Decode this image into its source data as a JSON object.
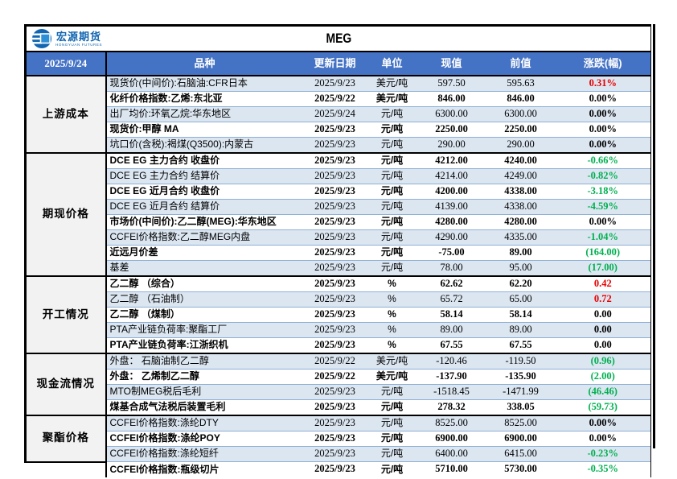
{
  "page": {
    "report_date": "2025/9/24",
    "product": "MEG"
  },
  "logo": {
    "cn": "宏源期货",
    "en": "HONGYUAN FUTURES"
  },
  "colors": {
    "header_bg": "#4472C4",
    "stripe_blue": "#DCE6F1",
    "group_bg": "#F2F2F2",
    "up_red": "#E80000",
    "down_green": "#00B050"
  },
  "table": {
    "columns": [
      "品种",
      "更新日期",
      "单位",
      "现值",
      "前值",
      "涨跌(幅)"
    ],
    "groups": [
      {
        "label": "上游成本",
        "rows": [
          {
            "name": "现货价(中间价):石脑油:CFR日本",
            "date": "2025/9/23",
            "unit": "美元/吨",
            "current": "597.50",
            "previous": "595.63",
            "change": "0.31%",
            "dir": "up"
          },
          {
            "name": "化纤价格指数:乙烯:东北亚",
            "date": "2025/9/22",
            "unit": "美元/吨",
            "current": "846.00",
            "previous": "846.00",
            "change": "0.00%",
            "dir": "flat"
          },
          {
            "name": "出厂均价:环氧乙烷:华东地区",
            "date": "2025/9/24",
            "unit": "元/吨",
            "current": "6300.00",
            "previous": "6300.00",
            "change": "0.00%",
            "dir": "flat"
          },
          {
            "name": "现货价:甲醇 MA",
            "date": "2025/9/23",
            "unit": "元/吨",
            "current": "2250.00",
            "previous": "2250.00",
            "change": "0.00%",
            "dir": "flat"
          },
          {
            "name": "坑口价(含税):褐煤(Q3500):内蒙古",
            "date": "2025/9/23",
            "unit": "元/吨",
            "current": "290.00",
            "previous": "290.00",
            "change": "0.00%",
            "dir": "flat"
          }
        ]
      },
      {
        "label": "期现价格",
        "rows": [
          {
            "name": "DCE EG 主力合约 收盘价",
            "date": "2025/9/23",
            "unit": "元/吨",
            "current": "4212.00",
            "previous": "4240.00",
            "change": "-0.66%",
            "dir": "down"
          },
          {
            "name": "DCE EG 主力合约 结算价",
            "date": "2025/9/23",
            "unit": "元/吨",
            "current": "4214.00",
            "previous": "4249.00",
            "change": "-0.82%",
            "dir": "down"
          },
          {
            "name": "DCE EG 近月合约 收盘价",
            "date": "2025/9/23",
            "unit": "元/吨",
            "current": "4200.00",
            "previous": "4338.00",
            "change": "-3.18%",
            "dir": "down"
          },
          {
            "name": "DCE EG 近月合约 结算价",
            "date": "2025/9/23",
            "unit": "元/吨",
            "current": "4139.00",
            "previous": "4338.00",
            "change": "-4.59%",
            "dir": "down"
          },
          {
            "name": "市场价(中间价):乙二醇(MEG):华东地区",
            "date": "2025/9/23",
            "unit": "元/吨",
            "current": "4280.00",
            "previous": "4280.00",
            "change": "0.00%",
            "dir": "flat"
          },
          {
            "name": "CCFEI价格指数:乙二醇MEG内盘",
            "date": "2025/9/23",
            "unit": "元/吨",
            "current": "4290.00",
            "previous": "4335.00",
            "change": "-1.04%",
            "dir": "down"
          },
          {
            "name": "近远月价差",
            "date": "2025/9/23",
            "unit": "元/吨",
            "current": "-75.00",
            "previous": "89.00",
            "change": "(164.00)",
            "dir": "down"
          },
          {
            "name": "基差",
            "date": "2025/9/23",
            "unit": "元/吨",
            "current": "78.00",
            "previous": "95.00",
            "change": "(17.00)",
            "dir": "down"
          }
        ]
      },
      {
        "label": "开工情况",
        "rows": [
          {
            "name": "乙二醇 （综合）",
            "date": "2025/9/23",
            "unit": "%",
            "current": "62.62",
            "previous": "62.20",
            "change": "0.42",
            "dir": "up"
          },
          {
            "name": "乙二醇 （石油制）",
            "date": "2025/9/23",
            "unit": "%",
            "current": "65.72",
            "previous": "65.00",
            "change": "0.72",
            "dir": "up"
          },
          {
            "name": "乙二醇 （煤制）",
            "date": "2025/9/23",
            "unit": "%",
            "current": "58.14",
            "previous": "58.14",
            "change": "0.00",
            "dir": "flat"
          },
          {
            "name": "PTA产业链负荷率:聚酯工厂",
            "date": "2025/9/23",
            "unit": "%",
            "current": "89.00",
            "previous": "89.00",
            "change": "0.00",
            "dir": "flat"
          },
          {
            "name": "PTA产业链负荷率:江浙织机",
            "date": "2025/9/23",
            "unit": "%",
            "current": "67.55",
            "previous": "67.55",
            "change": "0.00",
            "dir": "flat"
          }
        ]
      },
      {
        "label": "现金流情况",
        "rows": [
          {
            "name": "外盘： 石脑油制乙二醇",
            "date": "2025/9/22",
            "unit": "美元/吨",
            "current": "-120.46",
            "previous": "-119.50",
            "change": "(0.96)",
            "dir": "down"
          },
          {
            "name": "外盘： 乙烯制乙二醇",
            "date": "2025/9/22",
            "unit": "美元/吨",
            "current": "-137.90",
            "previous": "-135.90",
            "change": "(2.00)",
            "dir": "down"
          },
          {
            "name": "MTO制MEG税后毛利",
            "date": "2025/9/23",
            "unit": "元/吨",
            "current": "-1518.45",
            "previous": "-1471.99",
            "change": "(46.46)",
            "dir": "down"
          },
          {
            "name": "煤基合成气法税后装置毛利",
            "date": "2025/9/23",
            "unit": "元/吨",
            "current": "278.32",
            "previous": "338.05",
            "change": "(59.73)",
            "dir": "down"
          }
        ]
      },
      {
        "label": "聚酯价格",
        "label_rowspan": 3,
        "rows": [
          {
            "name": "CCFEI价格指数:涤纶DTY",
            "date": "2025/9/23",
            "unit": "元/吨",
            "current": "8525.00",
            "previous": "8525.00",
            "change": "0.00%",
            "dir": "flat"
          },
          {
            "name": "CCFEI价格指数:涤纶POY",
            "date": "2025/9/23",
            "unit": "元/吨",
            "current": "6900.00",
            "previous": "6900.00",
            "change": "0.00%",
            "dir": "flat"
          },
          {
            "name": "CCFEI价格指数:涤纶短纤",
            "date": "2025/9/23",
            "unit": "元/吨",
            "current": "6400.00",
            "previous": "6415.00",
            "change": "-0.23%",
            "dir": "down"
          },
          {
            "name": "CCFEI价格指数:瓶级切片",
            "date": "2025/9/23",
            "unit": "元/吨",
            "current": "5710.00",
            "previous": "5730.00",
            "change": "-0.35%",
            "dir": "down"
          }
        ]
      }
    ]
  }
}
